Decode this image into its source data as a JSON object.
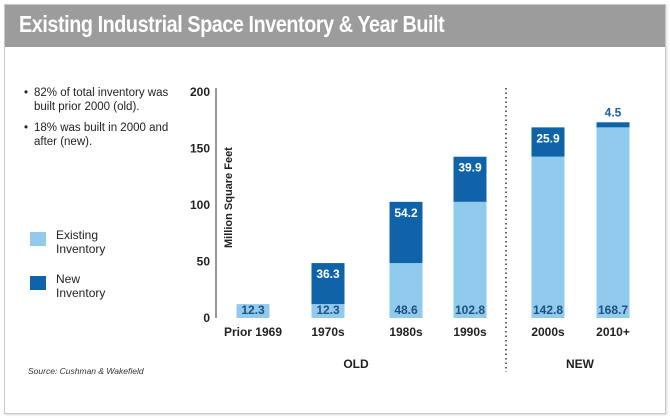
{
  "header": {
    "title": "Existing Industrial Space Inventory & Year Built"
  },
  "notes": [
    "82% of total inventory was built prior 2000 (old).",
    "18% was built in 2000 and after (new)."
  ],
  "source": "Source: Cushman & Wakefield",
  "colors": {
    "existing": "#90cbee",
    "new": "#0f63a8",
    "title_bar": "#9c9c9c"
  },
  "chart_data": {
    "type": "bar",
    "stacked": true,
    "categories": [
      "Prior 1969",
      "1970s",
      "1980s",
      "1990s",
      "2000s",
      "2010+"
    ],
    "series": [
      {
        "name": "Existing Inventory",
        "values": [
          12.3,
          12.3,
          48.6,
          102.8,
          142.8,
          168.7
        ]
      },
      {
        "name": "New Inventory",
        "values": [
          null,
          36.3,
          54.2,
          39.9,
          25.9,
          4.5
        ]
      }
    ],
    "value_labels": {
      "existing": [
        "12.3",
        "12.3",
        "48.6",
        "102.8",
        "142.8",
        "168.7"
      ],
      "new": [
        "",
        "36.3",
        "54.2",
        "39.9",
        "25.9",
        "4.5"
      ]
    },
    "ylabel": "Million Square Feet",
    "ylim": [
      0,
      200
    ],
    "yticks": [
      0,
      50,
      100,
      150,
      200
    ],
    "ytick_labels": [
      "0",
      "50",
      "100",
      "150",
      "200"
    ],
    "groups": [
      {
        "label": "OLD",
        "categories": [
          "Prior 1969",
          "1970s",
          "1980s",
          "1990s"
        ]
      },
      {
        "label": "NEW",
        "categories": [
          "2000s",
          "2010+"
        ]
      }
    ],
    "grid": false,
    "legend": "left"
  }
}
